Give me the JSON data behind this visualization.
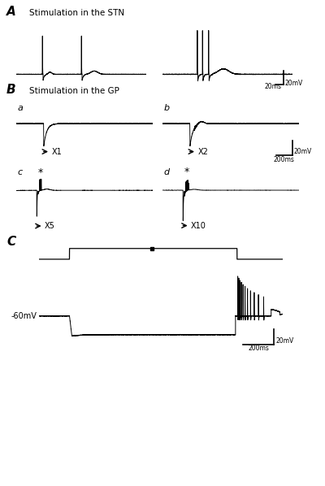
{
  "panel_A_label": "A",
  "panel_B_label": "B",
  "panel_C_label": "C",
  "panel_A_title": "Stimulation in the STN",
  "panel_B_title": "Stimulation in the GP",
  "label_a": "a",
  "label_b": "b",
  "label_c": "c",
  "label_d": "d",
  "arrow_X1": "X1",
  "arrow_X2": "X2",
  "arrow_X5": "X5",
  "arrow_X10": "X10",
  "label_60mV": "-60mV",
  "scale_20mV": "20mV",
  "scale_20ms": "20ms",
  "scale_200ms": "200ms",
  "line_color": "#000000",
  "bg_color": "#ffffff"
}
